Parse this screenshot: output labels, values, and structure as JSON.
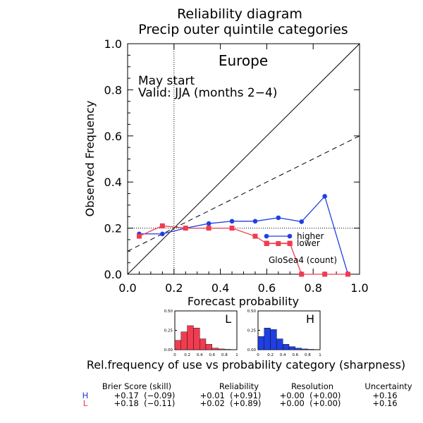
{
  "chart_data": {
    "type": "line",
    "title": [
      "Reliability diagram",
      "Precip outer quintile categories"
    ],
    "region": "Europe",
    "start": "May start",
    "valid": "Valid: JJA (months 2−4)",
    "xlabel": "Forecast probability",
    "ylabel": "Observed Frequency",
    "xlim": [
      0,
      1
    ],
    "ylim": [
      0,
      1
    ],
    "xticks": [
      "0.0",
      "0.2",
      "0.4",
      "0.6",
      "0.8",
      "1.0"
    ],
    "yticks": [
      "0.0",
      "0.2",
      "0.4",
      "0.6",
      "0.8",
      "1.0"
    ],
    "climatology": 0.2,
    "no_skill_line": [
      [
        0,
        0.1
      ],
      [
        1,
        0.6
      ]
    ],
    "series": [
      {
        "name": "higher",
        "color": "#1f3fe0",
        "marker": "circle",
        "x": [
          0.05,
          0.15,
          0.25,
          0.35,
          0.45,
          0.55,
          0.65,
          0.75,
          0.85,
          0.95
        ],
        "y": [
          0.175,
          0.175,
          0.2,
          0.22,
          0.23,
          0.23,
          0.245,
          0.228,
          0.338,
          0.0
        ]
      },
      {
        "name": "lower",
        "color": "#f03c50",
        "marker": "square",
        "x": [
          0.05,
          0.15,
          0.25,
          0.35,
          0.45,
          0.55,
          0.6,
          0.65,
          0.7,
          0.75,
          0.85,
          0.95
        ],
        "y": [
          0.165,
          0.21,
          0.2,
          0.2,
          0.2,
          0.165,
          0.133,
          0.133,
          0.133,
          0.0,
          0.0,
          0.0
        ]
      }
    ],
    "model_label": "GloSea4 (count)",
    "sharpness": {
      "caption": "Rel.frequency of use vs probability category (sharpness)",
      "yticks": [
        "0.50",
        "0.25",
        "0.00"
      ],
      "xticks": [
        "0",
        "0.2",
        "0.4",
        "0.6",
        "0.8",
        "1"
      ],
      "panels": [
        {
          "label": "L",
          "color": "#f03c50",
          "values": [
            0.12,
            0.23,
            0.31,
            0.28,
            0.14,
            0.07,
            0.02,
            0.01,
            0.005,
            0.0
          ]
        },
        {
          "label": "H",
          "color": "#1f3fe0",
          "values": [
            0.17,
            0.28,
            0.26,
            0.14,
            0.07,
            0.04,
            0.02,
            0.01,
            0.005,
            0.0
          ]
        }
      ]
    },
    "scores": {
      "headers": [
        "Brier Score (skill)",
        "Reliability",
        "Resolution",
        "Uncertainty"
      ],
      "rows": [
        {
          "label": "H",
          "color": "#1f3fe0",
          "cells": [
            "+0.17  (−0.09)",
            "+0.01  (+0.91)",
            "+0.00  (+0.00)",
            "+0.16"
          ]
        },
        {
          "label": "L",
          "color": "#f03c50",
          "cells": [
            "+0.18  (−0.11)",
            "+0.02  (+0.89)",
            "+0.00  (+0.00)",
            "+0.16"
          ]
        }
      ]
    }
  }
}
